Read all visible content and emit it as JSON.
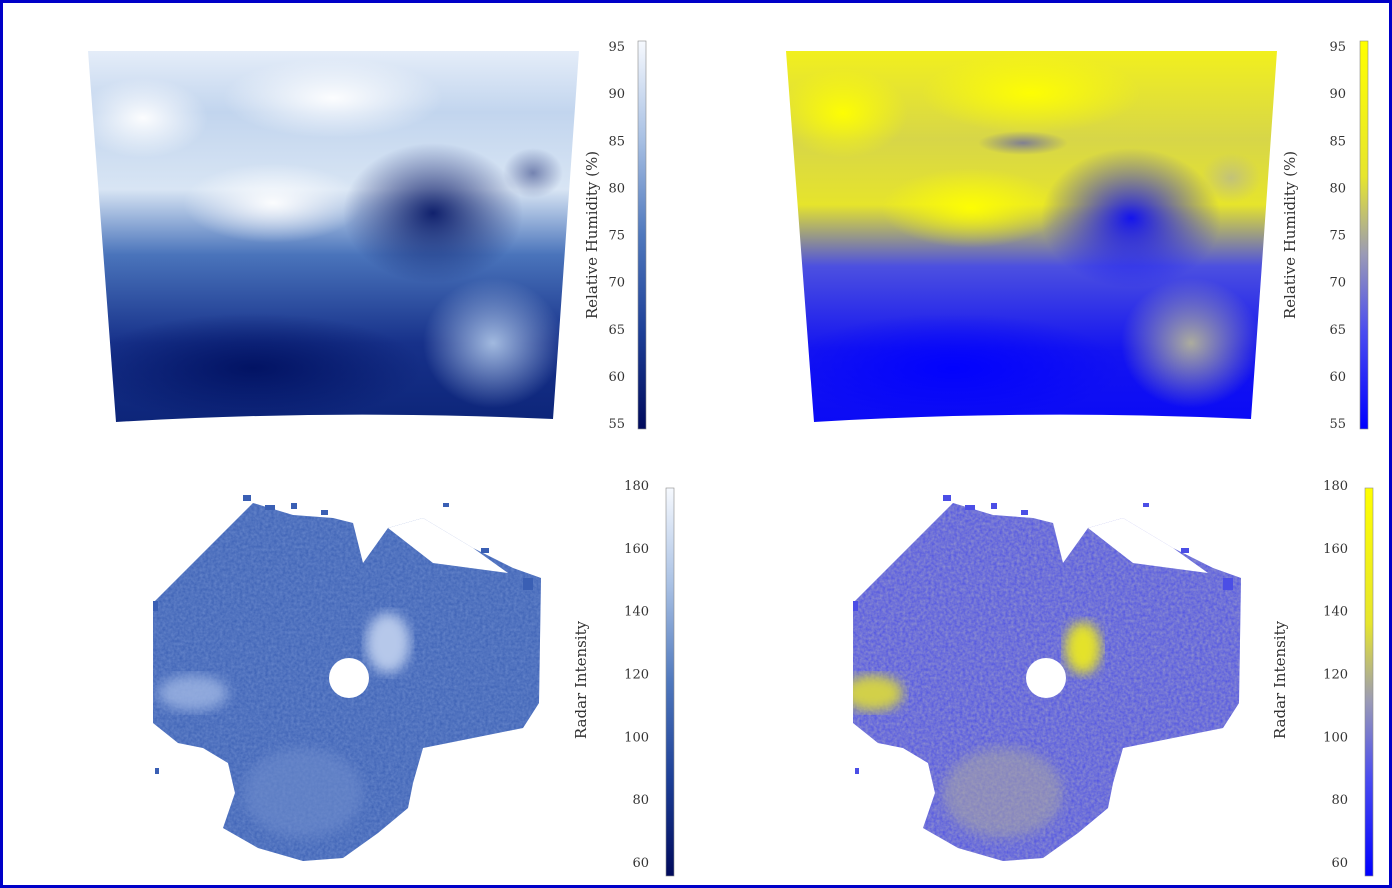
{
  "figure": {
    "border_color": "#0000c8",
    "background": "#ffffff"
  },
  "colormaps": {
    "blue_white": [
      "#000c6a",
      "#173c96",
      "#4c76bc",
      "#9bb8de",
      "#f2f7fd"
    ],
    "blue_yellow": [
      "#0000ff",
      "#3a3ef2",
      "#8f93c8",
      "#c9c98a",
      "#ffff00"
    ]
  },
  "chart_data": [
    {
      "type": "heatmap",
      "panel": "top-left",
      "colormap": "blue_white",
      "colorbar": {
        "label": "Relative Humidity (%)",
        "range": [
          55,
          95
        ],
        "ticks": [
          "95",
          "90",
          "85",
          "80",
          "75",
          "70",
          "65",
          "60",
          "55"
        ]
      }
    },
    {
      "type": "heatmap",
      "panel": "top-right",
      "colormap": "blue_yellow",
      "colorbar": {
        "label": "Relative Humidity (%)",
        "range": [
          55,
          95
        ],
        "ticks": [
          "95",
          "90",
          "85",
          "80",
          "75",
          "70",
          "65",
          "60",
          "55"
        ]
      }
    },
    {
      "type": "heatmap",
      "panel": "bottom-left",
      "colormap": "blue_white",
      "colorbar": {
        "label": "Radar Intensity",
        "range": [
          60,
          180
        ],
        "ticks": [
          "180",
          "160",
          "140",
          "120",
          "100",
          "80",
          "60"
        ]
      }
    },
    {
      "type": "heatmap",
      "panel": "bottom-right",
      "colormap": "blue_yellow",
      "colorbar": {
        "label": "Radar Intensity",
        "range": [
          60,
          180
        ],
        "ticks": [
          "180",
          "160",
          "140",
          "120",
          "100",
          "80",
          "60"
        ]
      }
    }
  ]
}
